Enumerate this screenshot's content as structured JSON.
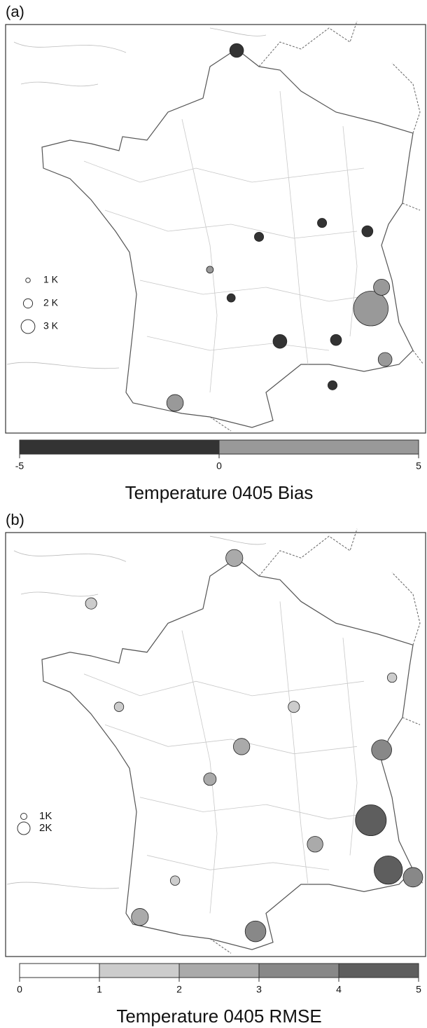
{
  "panels": [
    {
      "label": "(a)",
      "title": "Temperature 0405 Bias",
      "colorbar": {
        "ticks": [
          -5,
          0,
          5
        ],
        "colors": [
          "#333333",
          "#999999"
        ]
      },
      "legend": [
        {
          "label": "1 K",
          "value": 1
        },
        {
          "label": "2 K",
          "value": 2
        },
        {
          "label": "3 K",
          "value": 3
        }
      ],
      "stations": [
        {
          "lon": 2.08,
          "lat": 51.05,
          "value": -3
        },
        {
          "lon": 6.7,
          "lat": 45.47,
          "value": 7.5
        },
        {
          "lon": -0.04,
          "lat": 43.43,
          "value": 3.6
        },
        {
          "lon": 3.57,
          "lat": 44.76,
          "value": -3
        },
        {
          "lon": 7.19,
          "lat": 44.37,
          "value": 3
        },
        {
          "lon": 7.07,
          "lat": 45.93,
          "value": 3.5
        },
        {
          "lon": 6.58,
          "lat": 47.14,
          "value": -2.4
        },
        {
          "lon": 5.02,
          "lat": 47.32,
          "value": -2
        },
        {
          "lon": 2.85,
          "lat": 47.02,
          "value": -2
        },
        {
          "lon": 1.89,
          "lat": 45.7,
          "value": -1.8
        },
        {
          "lon": 5.38,
          "lat": 43.81,
          "value": -2
        },
        {
          "lon": 1.16,
          "lat": 46.31,
          "value": 1.5
        },
        {
          "lon": 5.5,
          "lat": 44.79,
          "value": -2.4
        }
      ]
    },
    {
      "label": "(b)",
      "title": "Temperature 0405 RMSE",
      "colorbar": {
        "ticks": [
          0,
          1,
          2,
          3,
          4,
          5
        ],
        "colors": [
          "#ffffff",
          "#cccccc",
          "#aaaaaa",
          "#888888",
          "#5e5e5e"
        ]
      },
      "legend": [
        {
          "label": "1K",
          "value": 1
        },
        {
          "label": "2K",
          "value": 2
        }
      ],
      "stations": [
        {
          "lon": 2.0,
          "lat": 51.08,
          "value": 2.7
        },
        {
          "lon": 6.7,
          "lat": 45.6,
          "value": 4.9
        },
        {
          "lon": 7.3,
          "lat": 44.56,
          "value": 4.5
        },
        {
          "lon": 8.15,
          "lat": 44.41,
          "value": 3.1
        },
        {
          "lon": 2.73,
          "lat": 43.28,
          "value": 3.3
        },
        {
          "lon": -1.25,
          "lat": 43.58,
          "value": 2.7
        },
        {
          "lon": 2.25,
          "lat": 47.14,
          "value": 2.6
        },
        {
          "lon": -2.93,
          "lat": 50.13,
          "value": 1.8
        },
        {
          "lon": 4.05,
          "lat": 47.97,
          "value": 1.8
        },
        {
          "lon": 1.16,
          "lat": 46.46,
          "value": 2
        },
        {
          "lon": -0.04,
          "lat": 44.34,
          "value": 1.5
        },
        {
          "lon": 4.78,
          "lat": 45.1,
          "value": 2.5
        },
        {
          "lon": 7.43,
          "lat": 48.58,
          "value": 1.5
        },
        {
          "lon": -1.97,
          "lat": 47.97,
          "value": 1.5
        },
        {
          "lon": 7.07,
          "lat": 47.07,
          "value": 3.2
        }
      ]
    }
  ]
}
